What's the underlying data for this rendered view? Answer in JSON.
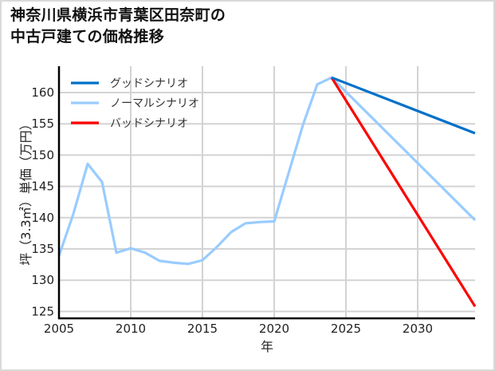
{
  "chart_data": {
    "type": "line",
    "title": "神奈川県横浜市青葉区田奈町の中古戸建ての価格推移",
    "title_lines": [
      "神奈川県横浜市青葉区田奈町の",
      "中古戸建ての価格推移"
    ],
    "xlabel": "年",
    "ylabel": "坪（3.3㎡）単価（万円）",
    "xlim": [
      2005,
      2034
    ],
    "ylim": [
      124,
      164
    ],
    "x_ticks": [
      2005,
      2010,
      2015,
      2020,
      2025,
      2030
    ],
    "y_ticks": [
      125,
      130,
      135,
      140,
      145,
      150,
      155,
      160
    ],
    "grid": true,
    "legend_position": "upper left",
    "series": [
      {
        "name": "グッドシナリオ",
        "color": "#0070c8",
        "x": [
          2024,
          2034
        ],
        "values": [
          162.4,
          153.5
        ]
      },
      {
        "name": "ノーマルシナリオ",
        "color": "#99ccff",
        "x": [
          2005,
          2006,
          2007,
          2008,
          2009,
          2010,
          2011,
          2012,
          2013,
          2014,
          2015,
          2016,
          2017,
          2018,
          2019,
          2020,
          2021,
          2022,
          2023,
          2024,
          2034
        ],
        "values": [
          133.9,
          140.6,
          148.6,
          145.7,
          134.4,
          135.1,
          134.4,
          133.1,
          132.8,
          132.6,
          133.2,
          135.3,
          137.7,
          139.1,
          139.3,
          139.4,
          147.1,
          154.8,
          161.3,
          162.4,
          139.6
        ]
      },
      {
        "name": "バッドシナリオ",
        "color": "#ff0000",
        "x": [
          2024,
          2034
        ],
        "values": [
          162.4,
          125.8
        ]
      }
    ]
  }
}
